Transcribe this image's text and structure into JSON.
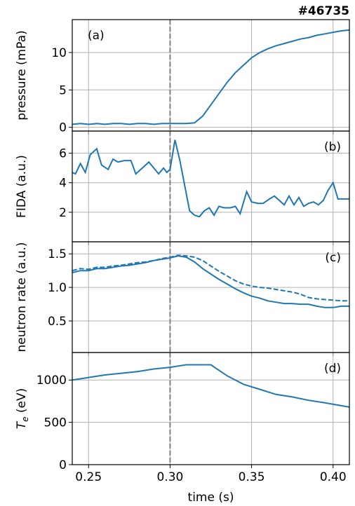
{
  "chart_data": [
    {
      "type": "line",
      "title": "#46735",
      "ylabel": "pressure (mPa)",
      "annotation": "(a)",
      "annotation_corner": "upper left",
      "xlim": [
        0.24,
        0.41
      ],
      "xticks": [
        0.25,
        {
          "value": 0.3,
          "label": "0.30"
        },
        0.35,
        {
          "value": 0.4,
          "label": "0.40"
        }
      ],
      "ylim": [
        -0.5,
        14.4
      ],
      "yticks": [
        0,
        5,
        10
      ],
      "grid": true,
      "vline": 0.3,
      "x": [
        0.24,
        0.245,
        0.25,
        0.255,
        0.26,
        0.265,
        0.27,
        0.275,
        0.28,
        0.285,
        0.29,
        0.295,
        0.3,
        0.305,
        0.31,
        0.315,
        0.32,
        0.325,
        0.33,
        0.335,
        0.34,
        0.345,
        0.35,
        0.355,
        0.36,
        0.365,
        0.37,
        0.375,
        0.38,
        0.385,
        0.39,
        0.395,
        0.4,
        0.405,
        0.41
      ],
      "series": [
        {
          "color": "#1f77b4",
          "dash": false,
          "values": [
            0.4,
            0.5,
            0.4,
            0.5,
            0.4,
            0.5,
            0.5,
            0.4,
            0.5,
            0.5,
            0.4,
            0.5,
            0.5,
            0.5,
            0.5,
            0.6,
            1.5,
            3.0,
            4.5,
            6.0,
            7.3,
            8.3,
            9.3,
            10.0,
            10.5,
            10.9,
            11.2,
            11.5,
            11.8,
            12.0,
            12.3,
            12.5,
            12.7,
            12.9,
            13.0
          ]
        }
      ]
    },
    {
      "type": "line",
      "ylabel": "FIDA (a.u.)",
      "annotation": "(b)",
      "annotation_corner": "upper right",
      "xlim": [
        0.24,
        0.41
      ],
      "xticks": [
        0.25,
        {
          "value": 0.3,
          "label": "0.30"
        },
        0.35,
        {
          "value": 0.4,
          "label": "0.40"
        }
      ],
      "ylim": [
        0,
        7.5
      ],
      "yticks": [
        2,
        4,
        6
      ],
      "grid": true,
      "vline": 0.3,
      "x": [
        0.24,
        0.242,
        0.245,
        0.248,
        0.251,
        0.255,
        0.258,
        0.262,
        0.265,
        0.268,
        0.272,
        0.276,
        0.279,
        0.283,
        0.287,
        0.29,
        0.293,
        0.296,
        0.298,
        0.3,
        0.303,
        0.306,
        0.309,
        0.312,
        0.315,
        0.318,
        0.321,
        0.324,
        0.327,
        0.33,
        0.333,
        0.337,
        0.34,
        0.343,
        0.347,
        0.35,
        0.354,
        0.357,
        0.361,
        0.364,
        0.367,
        0.37,
        0.373,
        0.376,
        0.379,
        0.382,
        0.385,
        0.388,
        0.391,
        0.394,
        0.397,
        0.4,
        0.403,
        0.407,
        0.41
      ],
      "series": [
        {
          "color": "#1f77b4",
          "dash": false,
          "values": [
            4.7,
            4.6,
            5.3,
            4.7,
            5.9,
            6.3,
            5.2,
            4.9,
            5.6,
            5.4,
            5.5,
            5.5,
            4.6,
            5.0,
            5.4,
            5.0,
            4.6,
            5.0,
            4.7,
            4.9,
            6.9,
            5.5,
            3.8,
            2.1,
            1.8,
            1.7,
            2.1,
            2.3,
            1.8,
            2.4,
            2.3,
            2.3,
            2.4,
            1.9,
            3.4,
            2.7,
            2.6,
            2.6,
            2.9,
            3.1,
            2.8,
            2.5,
            3.1,
            2.5,
            3.0,
            2.4,
            2.6,
            2.7,
            2.5,
            2.8,
            3.5,
            4.0,
            2.9,
            2.9,
            2.9
          ]
        }
      ]
    },
    {
      "type": "line",
      "ylabel": "neutron rate (a.u.)",
      "annotation": "(c)",
      "annotation_corner": "upper right",
      "xlim": [
        0.24,
        0.41
      ],
      "xticks": [
        0.25,
        {
          "value": 0.3,
          "label": "0.30"
        },
        0.35,
        {
          "value": 0.4,
          "label": "0.40"
        }
      ],
      "ylim": [
        0.03,
        1.68
      ],
      "yticks": [
        0.5,
        {
          "value": 1,
          "label": "1.0"
        },
        1.5
      ],
      "grid": true,
      "vline": 0.3,
      "x": [
        0.24,
        0.245,
        0.25,
        0.255,
        0.26,
        0.265,
        0.27,
        0.275,
        0.28,
        0.285,
        0.29,
        0.295,
        0.3,
        0.305,
        0.31,
        0.315,
        0.32,
        0.325,
        0.33,
        0.335,
        0.34,
        0.345,
        0.35,
        0.355,
        0.36,
        0.365,
        0.37,
        0.375,
        0.38,
        0.385,
        0.39,
        0.395,
        0.4,
        0.405,
        0.41
      ],
      "series": [
        {
          "color": "#1f77b4",
          "dash": false,
          "values": [
            1.22,
            1.25,
            1.25,
            1.28,
            1.28,
            1.3,
            1.32,
            1.33,
            1.35,
            1.37,
            1.4,
            1.42,
            1.44,
            1.47,
            1.45,
            1.38,
            1.28,
            1.2,
            1.12,
            1.05,
            0.98,
            0.92,
            0.87,
            0.84,
            0.8,
            0.78,
            0.76,
            0.76,
            0.75,
            0.75,
            0.72,
            0.7,
            0.7,
            0.72,
            0.72
          ]
        },
        {
          "color": "#1f77b4",
          "dash": true,
          "values": [
            1.25,
            1.28,
            1.27,
            1.3,
            1.3,
            1.32,
            1.33,
            1.35,
            1.37,
            1.38,
            1.4,
            1.43,
            1.45,
            1.48,
            1.47,
            1.45,
            1.4,
            1.32,
            1.24,
            1.17,
            1.1,
            1.05,
            1.02,
            1.0,
            0.99,
            0.97,
            0.95,
            0.93,
            0.9,
            0.85,
            0.83,
            0.82,
            0.81,
            0.8,
            0.8
          ]
        }
      ]
    },
    {
      "type": "line",
      "ylabel": "T_e (eV)",
      "annotation": "(d)",
      "annotation_corner": "upper right",
      "xlabel": "time (s)",
      "xlim": [
        0.24,
        0.41
      ],
      "xticks": [
        0.25,
        {
          "value": 0.3,
          "label": "0.30"
        },
        0.35,
        {
          "value": 0.4,
          "label": "0.40"
        }
      ],
      "ylim": [
        0,
        1325
      ],
      "yticks": [
        0,
        500,
        1000
      ],
      "grid": true,
      "vline": 0.3,
      "x": [
        0.24,
        0.26,
        0.28,
        0.29,
        0.3,
        0.31,
        0.325,
        0.335,
        0.345,
        0.355,
        0.365,
        0.375,
        0.385,
        0.395,
        0.41
      ],
      "series": [
        {
          "color": "#1f77b4",
          "dash": false,
          "values": [
            1000,
            1060,
            1100,
            1130,
            1150,
            1180,
            1180,
            1050,
            950,
            890,
            830,
            800,
            760,
            730,
            680
          ]
        }
      ]
    }
  ]
}
